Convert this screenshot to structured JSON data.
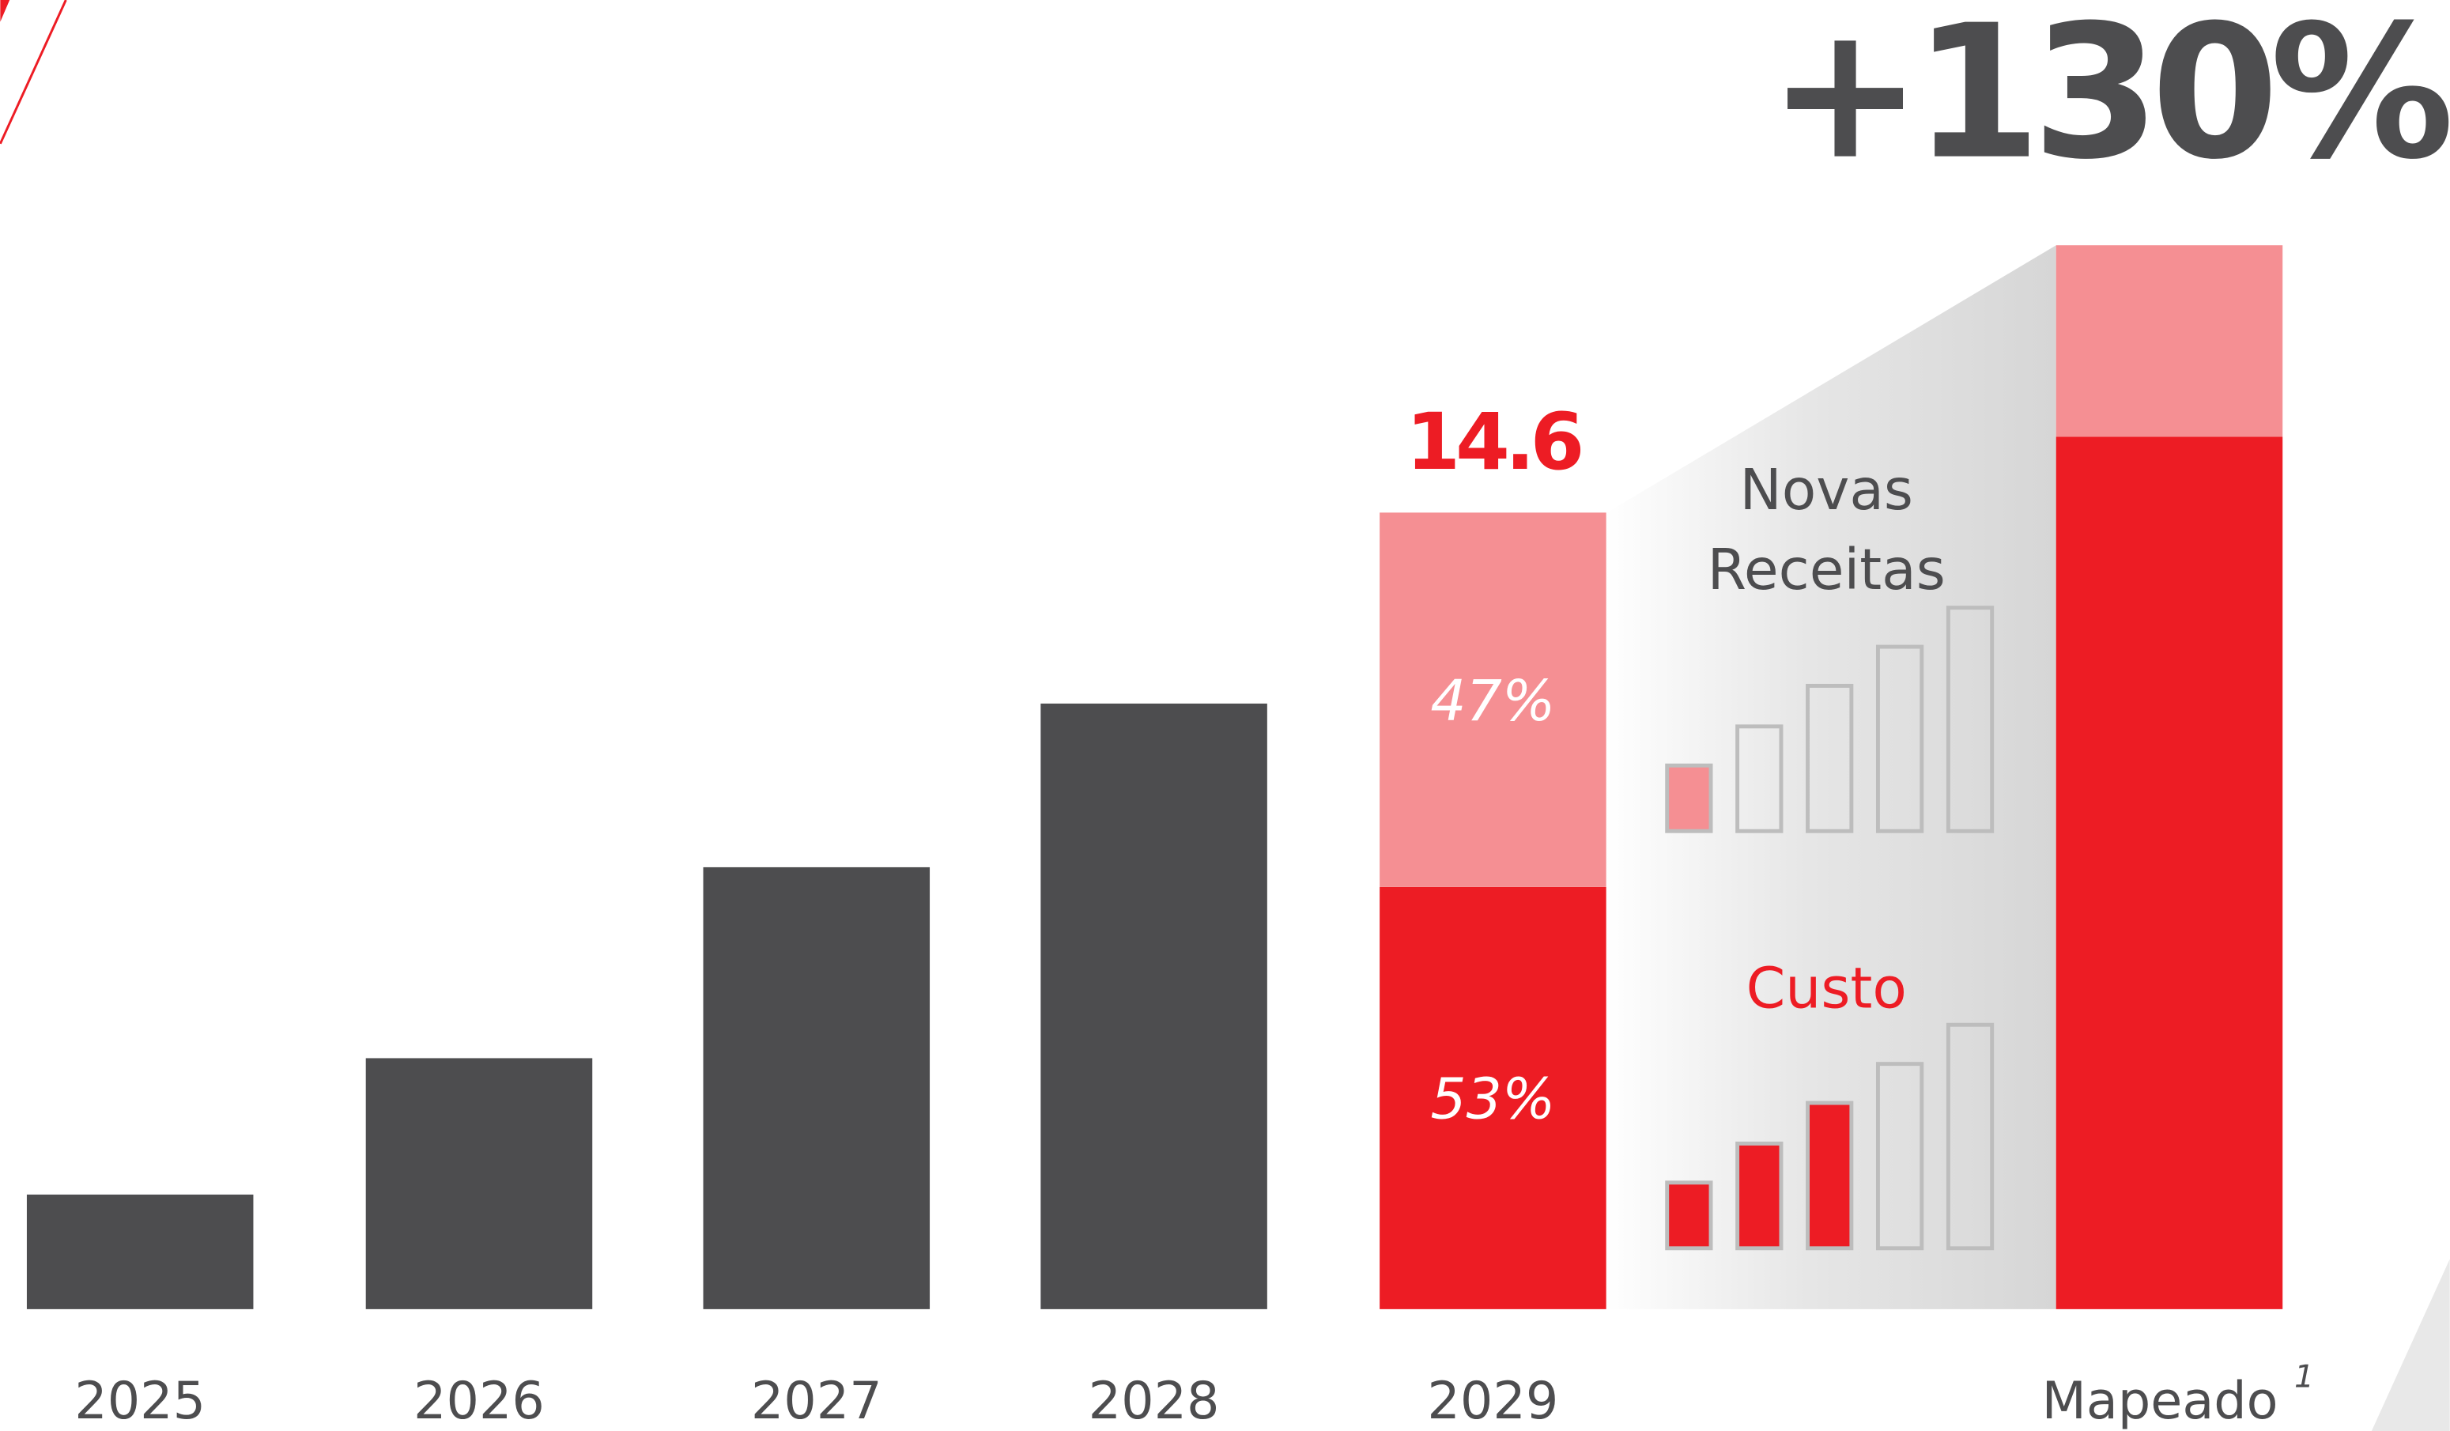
{
  "chart_data": {
    "type": "bar",
    "title": "+130%",
    "categories": [
      "2025",
      "2026",
      "2027",
      "2028",
      "2029",
      "Mapeado"
    ],
    "footnote_marker": "1",
    "values": [
      2.1,
      4.6,
      8.1,
      11.1,
      14.6,
      19.5
    ],
    "labeled_category": "2029",
    "color": "#4d4d4f",
    "stacks": [
      {
        "category": "2029",
        "values": [
          53,
          47
        ],
        "value_labels": [
          "53%",
          "47%"
        ],
        "colors": [
          "#ed1c24",
          "#f58f93"
        ]
      },
      {
        "category": "Mapeado",
        "values": [
          82,
          18
        ],
        "colors": [
          "#ed1c24",
          "#f58f93"
        ]
      }
    ],
    "annotations": {
      "upper": [
        "Novas",
        "Receitas"
      ],
      "lower": "Custo"
    }
  }
}
